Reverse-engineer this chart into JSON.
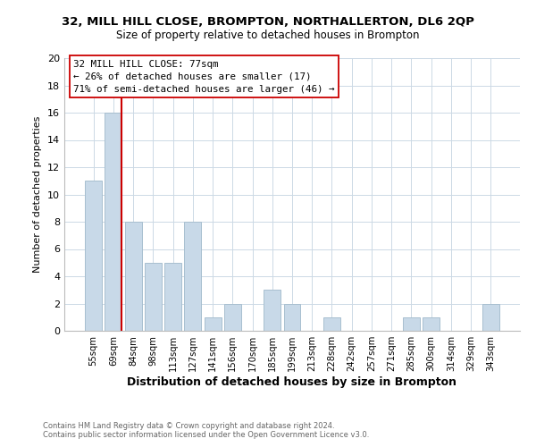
{
  "title": "32, MILL HILL CLOSE, BROMPTON, NORTHALLERTON, DL6 2QP",
  "subtitle": "Size of property relative to detached houses in Brompton",
  "xlabel": "Distribution of detached houses by size in Brompton",
  "ylabel": "Number of detached properties",
  "bar_labels": [
    "55sqm",
    "69sqm",
    "84sqm",
    "98sqm",
    "113sqm",
    "127sqm",
    "141sqm",
    "156sqm",
    "170sqm",
    "185sqm",
    "199sqm",
    "213sqm",
    "228sqm",
    "242sqm",
    "257sqm",
    "271sqm",
    "285sqm",
    "300sqm",
    "314sqm",
    "329sqm",
    "343sqm"
  ],
  "bar_values": [
    11,
    16,
    8,
    5,
    5,
    8,
    1,
    2,
    0,
    3,
    2,
    0,
    1,
    0,
    0,
    0,
    1,
    1,
    0,
    0,
    2
  ],
  "bar_color": "#c8d9e8",
  "bar_edge_color": "#a8bfcf",
  "reference_line_color": "#cc0000",
  "annotation_line1": "32 MILL HILL CLOSE: 77sqm",
  "annotation_line2": "← 26% of detached houses are smaller (17)",
  "annotation_line3": "71% of semi-detached houses are larger (46) →",
  "annotation_box_color": "#ffffff",
  "annotation_box_edge": "#cc0000",
  "ylim": [
    0,
    20
  ],
  "yticks": [
    0,
    2,
    4,
    6,
    8,
    10,
    12,
    14,
    16,
    18,
    20
  ],
  "footer1": "Contains HM Land Registry data © Crown copyright and database right 2024.",
  "footer2": "Contains public sector information licensed under the Open Government Licence v3.0.",
  "background_color": "#ffffff",
  "grid_color": "#ccd9e5",
  "title_fontsize": 9.5,
  "subtitle_fontsize": 8.5,
  "ylabel_fontsize": 8,
  "xlabel_fontsize": 9
}
